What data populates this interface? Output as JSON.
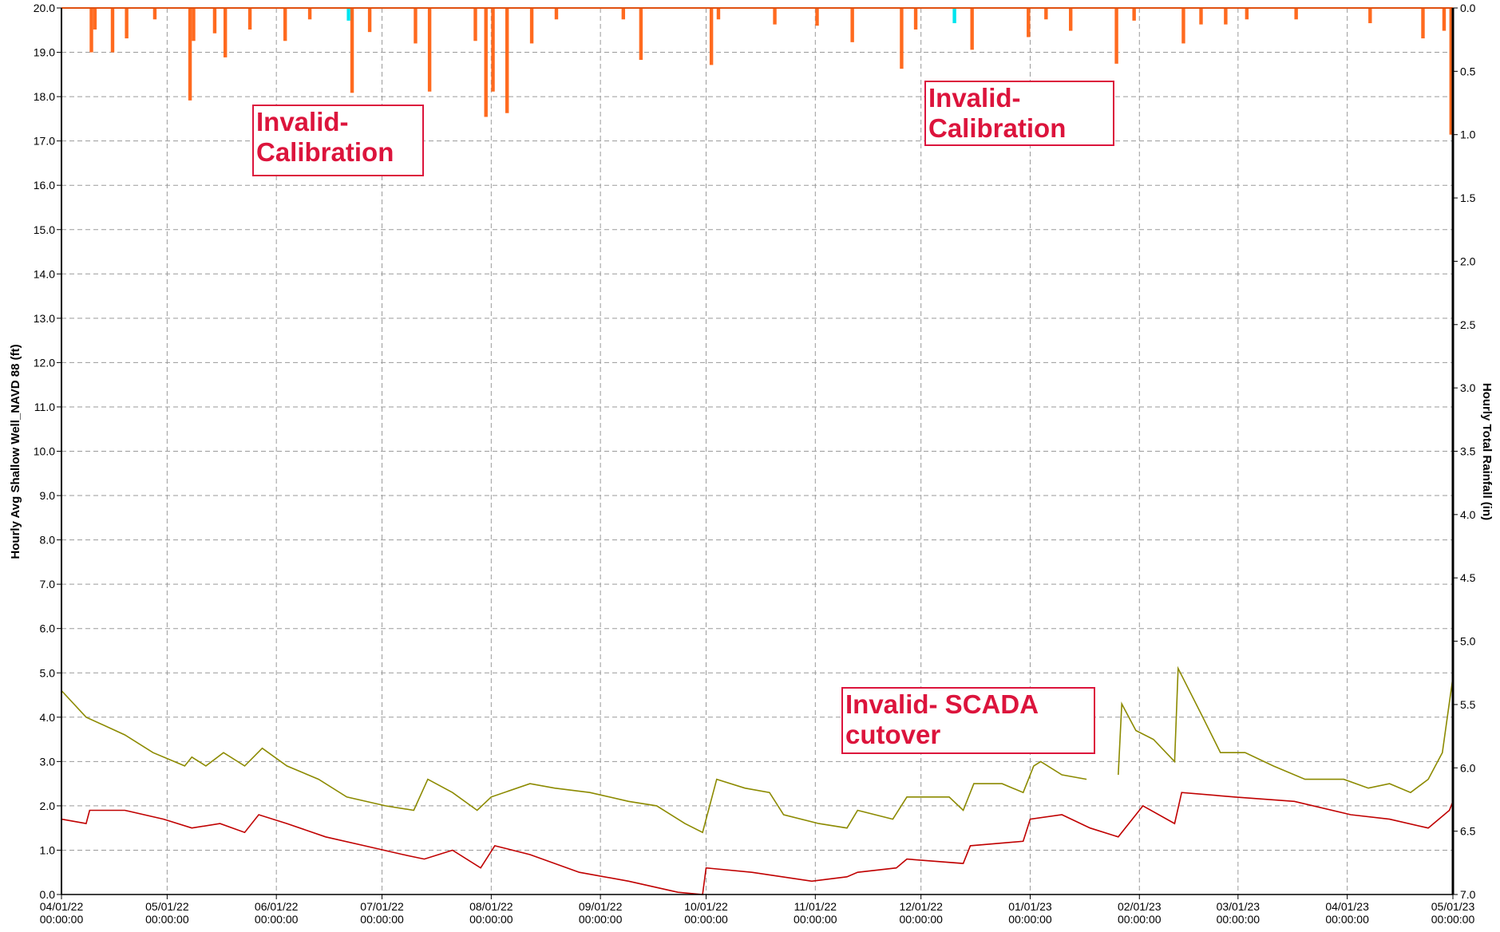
{
  "chart_data": {
    "type": "combo",
    "ylabel": "Hourly Avg Shallow Well_NAVD 88 (ft)",
    "y2label": "Hourly Total Rainfall (in)",
    "xlim": [
      "2022-04-01",
      "2023-05-01"
    ],
    "xticks": [
      {
        "value": "2022-04-01",
        "label": "04/01/22 00:00:00"
      },
      {
        "value": "2022-05-01",
        "label": "05/01/22 00:00:00"
      },
      {
        "value": "2022-06-01",
        "label": "06/01/22 00:00:00"
      },
      {
        "value": "2022-07-01",
        "label": "07/01/22 00:00:00"
      },
      {
        "value": "2022-08-01",
        "label": "08/01/22 00:00:00"
      },
      {
        "value": "2022-09-01",
        "label": "09/01/22 00:00:00"
      },
      {
        "value": "2022-10-01",
        "label": "10/01/22 00:00:00"
      },
      {
        "value": "2022-11-01",
        "label": "11/01/22 00:00:00"
      },
      {
        "value": "2022-12-01",
        "label": "12/01/22 00:00:00"
      },
      {
        "value": "2023-01-01",
        "label": "01/01/23 00:00:00"
      },
      {
        "value": "2023-02-01",
        "label": "02/01/23 00:00:00"
      },
      {
        "value": "2023-03-01",
        "label": "03/01/23 00:00:00"
      },
      {
        "value": "2023-04-01",
        "label": "04/01/23 00:00:00"
      },
      {
        "value": "2023-05-01",
        "label": "05/01/23 00:00:00"
      }
    ],
    "ylim": [
      0,
      20
    ],
    "yticks": [
      {
        "value": 0,
        "label": "0.0"
      },
      {
        "value": 1,
        "label": "1.0"
      },
      {
        "value": 2,
        "label": "2.0"
      },
      {
        "value": 3,
        "label": "3.0"
      },
      {
        "value": 4,
        "label": "4.0"
      },
      {
        "value": 5,
        "label": "5.0"
      },
      {
        "value": 6,
        "label": "6.0"
      },
      {
        "value": 7,
        "label": "7.0"
      },
      {
        "value": 8,
        "label": "8.0"
      },
      {
        "value": 9,
        "label": "9.0"
      },
      {
        "value": 10,
        "label": "10.0"
      },
      {
        "value": 11,
        "label": "11.0"
      },
      {
        "value": 12,
        "label": "12.0"
      },
      {
        "value": 13,
        "label": "13.0"
      },
      {
        "value": 14,
        "label": "14.0"
      },
      {
        "value": 15,
        "label": "15.0"
      },
      {
        "value": 16,
        "label": "16.0"
      },
      {
        "value": 17,
        "label": "17.0"
      },
      {
        "value": 18,
        "label": "18.0"
      },
      {
        "value": 19,
        "label": "19.0"
      },
      {
        "value": 20,
        "label": "20.0"
      }
    ],
    "y2lim": [
      7,
      0
    ],
    "y2ticks": [
      {
        "value": 0,
        "label": "0.0"
      },
      0.5,
      {
        "value": 1,
        "label": "1.0"
      },
      1.5,
      {
        "value": 2,
        "label": "2.0"
      },
      2.5,
      {
        "value": 3,
        "label": "3.0"
      },
      3.5,
      {
        "value": 4,
        "label": "4.0"
      },
      4.5,
      {
        "value": 5,
        "label": "5.0"
      },
      5.5,
      {
        "value": 6,
        "label": "6.0"
      },
      6.5,
      {
        "value": 7,
        "label": "7.0"
      }
    ],
    "grid": true,
    "series": [
      {
        "type": "line",
        "color": "#8c8a00",
        "x": [
          "2022-04-01",
          "2022-04-08",
          "2022-04-19",
          "2022-04-27",
          "2022-05-06",
          "2022-05-08",
          "2022-05-12",
          "2022-05-17",
          "2022-05-23",
          "2022-05-28",
          "2022-06-04",
          "2022-06-13",
          "2022-06-21",
          "2022-07-02",
          "2022-07-10",
          "2022-07-14",
          "2022-07-21",
          "2022-07-28",
          "2022-08-01",
          "2022-08-12",
          "2022-08-19",
          "2022-08-29",
          "2022-09-09",
          "2022-09-17",
          "2022-09-25",
          "2022-09-30",
          "2022-10-04",
          "2022-10-12",
          "2022-10-19",
          "2022-10-23",
          "2022-11-02",
          "2022-11-10",
          "2022-11-13",
          "2022-11-23",
          "2022-11-27",
          "2022-12-09",
          "2022-12-13",
          "2022-12-16",
          "2022-12-24",
          "2022-12-30",
          "2023-01-02",
          "2023-01-04",
          "2023-01-10",
          "2023-01-17",
          "2023-01-22",
          "2023-01-26",
          "2023-01-27",
          "2023-01-31",
          "2023-02-05",
          "2023-02-11",
          "2023-02-12",
          "2023-02-19",
          "2023-02-24",
          "2023-03-03",
          "2023-03-11",
          "2023-03-20",
          "2023-03-31",
          "2023-04-07",
          "2023-04-13",
          "2023-04-19",
          "2023-04-24",
          "2023-04-28",
          "2023-05-01"
        ],
        "values": [
          4.6,
          4.0,
          3.6,
          3.2,
          2.9,
          3.1,
          2.9,
          3.2,
          2.9,
          3.3,
          2.9,
          2.6,
          2.2,
          2.0,
          1.9,
          2.6,
          2.3,
          1.9,
          2.2,
          2.5,
          2.4,
          2.3,
          2.1,
          2.0,
          1.6,
          1.4,
          2.6,
          2.4,
          2.3,
          1.8,
          1.6,
          1.5,
          1.9,
          1.7,
          2.2,
          2.2,
          1.9,
          2.5,
          2.5,
          2.3,
          2.9,
          3.0,
          2.7,
          2.6,
          null,
          2.7,
          4.3,
          3.7,
          3.5,
          3.0,
          5.1,
          4.0,
          3.2,
          3.2,
          2.9,
          2.6,
          2.6,
          2.4,
          2.5,
          2.3,
          2.6,
          3.2,
          4.9
        ]
      },
      {
        "type": "line",
        "color": "#c00000",
        "x": [
          "2022-04-01",
          "2022-04-08",
          "2022-04-09",
          "2022-04-19",
          "2022-04-30",
          "2022-05-08",
          "2022-05-16",
          "2022-05-23",
          "2022-05-27",
          "2022-06-04",
          "2022-06-15",
          "2022-06-26",
          "2022-07-07",
          "2022-07-13",
          "2022-07-21",
          "2022-07-29",
          "2022-08-02",
          "2022-08-12",
          "2022-08-26",
          "2022-09-09",
          "2022-09-23",
          "2022-09-30",
          "2022-10-01",
          "2022-10-14",
          "2022-10-31",
          "2022-11-10",
          "2022-11-13",
          "2022-11-24",
          "2022-11-27",
          "2022-12-13",
          "2022-12-15",
          "2022-12-30",
          "2023-01-01",
          "2023-01-10",
          "2023-01-18",
          "2023-01-26",
          "2023-02-02",
          "2023-02-11",
          "2023-02-13",
          "2023-02-28",
          "2023-03-17",
          "2023-04-02",
          "2023-04-13",
          "2023-04-24",
          "2023-04-30",
          "2023-05-01"
        ],
        "values": [
          1.7,
          1.6,
          1.9,
          1.9,
          1.7,
          1.5,
          1.6,
          1.4,
          1.8,
          1.6,
          1.3,
          1.1,
          0.9,
          0.8,
          1.0,
          0.6,
          1.1,
          0.9,
          0.5,
          0.3,
          0.05,
          0.0,
          0.6,
          0.5,
          0.3,
          0.4,
          0.5,
          0.6,
          0.8,
          0.7,
          1.1,
          1.2,
          1.7,
          1.8,
          1.5,
          1.3,
          2.0,
          1.6,
          2.3,
          2.2,
          2.1,
          1.8,
          1.7,
          1.5,
          1.9,
          2.1
        ]
      },
      {
        "type": "bar",
        "axis": "y2",
        "color": "#ff6a1f",
        "x": [
          "2022-04-09",
          "2022-04-10",
          "2022-04-15",
          "2022-04-19",
          "2022-04-27",
          "2022-05-07",
          "2022-05-08",
          "2022-05-14",
          "2022-05-17",
          "2022-05-24",
          "2022-06-03",
          "2022-06-10",
          "2022-06-22",
          "2022-06-27",
          "2022-07-10",
          "2022-07-14",
          "2022-07-27",
          "2022-07-30",
          "2022-08-01",
          "2022-08-05",
          "2022-08-12",
          "2022-08-19",
          "2022-09-07",
          "2022-09-12",
          "2022-10-02",
          "2022-10-04",
          "2022-10-20",
          "2022-11-01",
          "2022-11-11",
          "2022-11-25",
          "2022-11-29",
          "2022-12-15",
          "2022-12-31",
          "2023-01-05",
          "2023-01-12",
          "2023-01-25",
          "2023-01-30",
          "2023-02-13",
          "2023-02-18",
          "2023-02-25",
          "2023-03-03",
          "2023-03-17",
          "2023-04-07",
          "2023-04-22",
          "2023-04-28",
          "2023-04-30"
        ],
        "values": [
          0.35,
          0.17,
          0.35,
          0.24,
          0.09,
          0.73,
          0.26,
          0.2,
          0.39,
          0.17,
          0.26,
          0.09,
          0.67,
          0.19,
          0.28,
          0.66,
          0.26,
          0.86,
          0.66,
          0.83,
          0.28,
          0.09,
          0.09,
          0.41,
          0.45,
          0.09,
          0.13,
          0.14,
          0.27,
          0.48,
          0.17,
          0.33,
          0.23,
          0.09,
          0.18,
          0.44,
          0.1,
          0.28,
          0.13,
          0.13,
          0.09,
          0.09,
          0.12,
          0.24,
          0.18,
          1.0
        ]
      },
      {
        "type": "bar",
        "axis": "y2",
        "color": "#00e5ee",
        "x": [
          "2022-06-21",
          "2022-12-10"
        ],
        "values": [
          0.1,
          0.12
        ]
      }
    ],
    "annotations": [
      {
        "lines": [
          "Invalid-",
          "Calibration"
        ]
      },
      {
        "lines": [
          "Invalid-",
          "Calibration"
        ]
      },
      {
        "lines": [
          "Invalid- SCADA",
          "cutover"
        ]
      }
    ]
  }
}
